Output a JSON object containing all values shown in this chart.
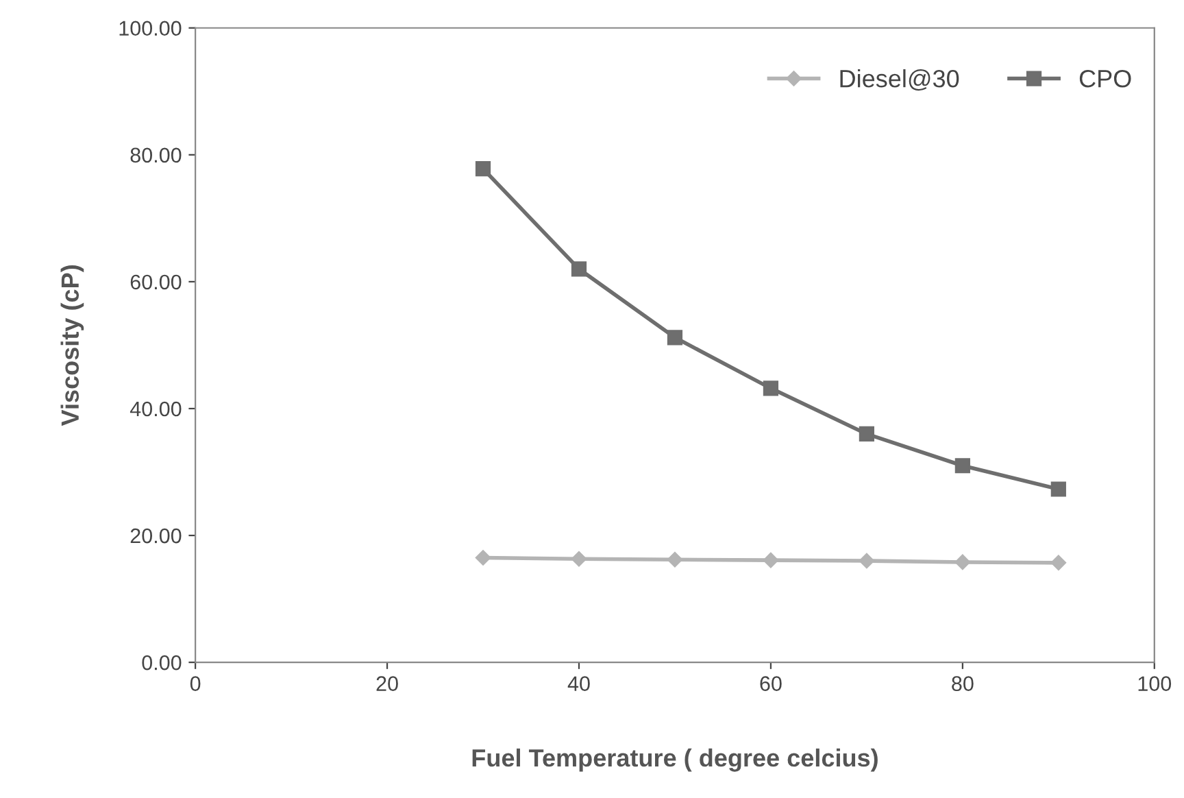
{
  "chart_data": {
    "type": "line",
    "xlabel": "Fuel Temperature ( degree celcius)",
    "ylabel": "Viscosity (cP)",
    "x": [
      30,
      40,
      50,
      60,
      70,
      80,
      90
    ],
    "series": [
      {
        "name": "Diesel@30",
        "color": "#b4b4b4",
        "marker": "diamond",
        "values": [
          16.5,
          16.3,
          16.2,
          16.1,
          16.0,
          15.8,
          15.7
        ]
      },
      {
        "name": "CPO",
        "color": "#6e6e6e",
        "marker": "square",
        "values": [
          77.8,
          62.0,
          51.2,
          43.2,
          36.0,
          31.0,
          27.3
        ]
      }
    ],
    "xlim": [
      0,
      100
    ],
    "xticks": [
      0,
      20,
      40,
      60,
      80,
      100
    ],
    "ylim": [
      0,
      100
    ],
    "yticks": [
      {
        "value": 0,
        "label": "0.00"
      },
      {
        "value": 20,
        "label": "20.00"
      },
      {
        "value": 40,
        "label": "40.00"
      },
      {
        "value": 60,
        "label": "60.00"
      },
      {
        "value": 80,
        "label": "80.00"
      },
      {
        "value": 100,
        "label": "100.00"
      }
    ],
    "grid": false,
    "legend": "top right",
    "line_style": "solid"
  }
}
